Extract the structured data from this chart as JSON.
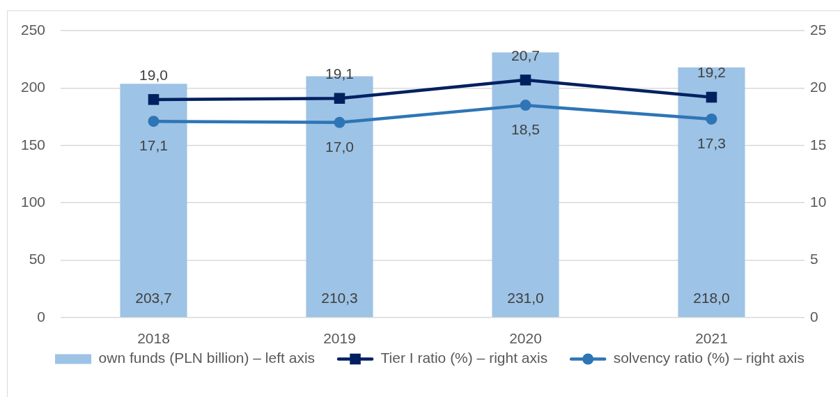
{
  "chart_data": {
    "type": "bar",
    "categories": [
      "2018",
      "2019",
      "2020",
      "2021"
    ],
    "series": [
      {
        "name": "own funds (PLN billion) – left axis",
        "type": "bar",
        "color": "#9dc3e6",
        "values": [
          203.7,
          210.3,
          231.0,
          218.0
        ],
        "value_labels": [
          "203,7",
          "210,3",
          "231,0",
          "218,0"
        ]
      },
      {
        "name": "Tier I ratio (%) – right axis",
        "type": "line",
        "axis": "y2",
        "color": "#002060",
        "marker": "square",
        "values": [
          19.0,
          19.1,
          20.7,
          19.2
        ],
        "value_labels": [
          "19,0",
          "19,1",
          "20,7",
          "19,2"
        ]
      },
      {
        "name": "solvency ratio (%) – right axis",
        "type": "line",
        "axis": "y2",
        "color": "#2e75b6",
        "marker": "circle",
        "values": [
          17.1,
          17.0,
          18.5,
          17.3
        ],
        "value_labels": [
          "17,1",
          "17,0",
          "18,5",
          "17,3"
        ]
      }
    ],
    "ylim": [
      0,
      250
    ],
    "yticks": [
      0,
      50,
      100,
      150,
      200,
      250
    ],
    "y2lim": [
      0,
      25
    ],
    "y2ticks": [
      0,
      5,
      10,
      15,
      20,
      25
    ],
    "grid": "y",
    "legend": "bottom"
  }
}
